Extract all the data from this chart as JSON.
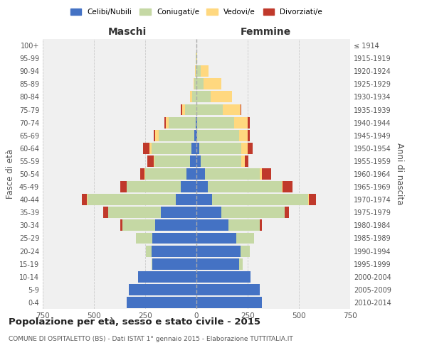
{
  "age_groups": [
    "0-4",
    "5-9",
    "10-14",
    "15-19",
    "20-24",
    "25-29",
    "30-34",
    "35-39",
    "40-44",
    "45-49",
    "50-54",
    "55-59",
    "60-64",
    "65-69",
    "70-74",
    "75-79",
    "80-84",
    "85-89",
    "90-94",
    "95-99",
    "100+"
  ],
  "birth_years": [
    "2010-2014",
    "2005-2009",
    "2000-2004",
    "1995-1999",
    "1990-1994",
    "1985-1989",
    "1980-1984",
    "1975-1979",
    "1970-1974",
    "1965-1969",
    "1960-1964",
    "1955-1959",
    "1950-1954",
    "1945-1949",
    "1940-1944",
    "1935-1939",
    "1930-1934",
    "1925-1929",
    "1920-1924",
    "1915-1919",
    "≤ 1914"
  ],
  "males": {
    "celibe": [
      340,
      330,
      285,
      215,
      220,
      215,
      200,
      175,
      100,
      75,
      50,
      30,
      25,
      10,
      5,
      0,
      0,
      0,
      0,
      0,
      0
    ],
    "coniugato": [
      0,
      0,
      0,
      5,
      25,
      80,
      160,
      255,
      430,
      265,
      200,
      175,
      195,
      175,
      130,
      55,
      20,
      10,
      5,
      2,
      0
    ],
    "vedovo": [
      0,
      0,
      0,
      0,
      0,
      0,
      0,
      0,
      5,
      2,
      5,
      5,
      10,
      15,
      15,
      15,
      10,
      5,
      2,
      0,
      0
    ],
    "divorziato": [
      0,
      0,
      0,
      0,
      0,
      0,
      10,
      25,
      25,
      30,
      20,
      30,
      30,
      10,
      5,
      5,
      0,
      0,
      0,
      0,
      0
    ]
  },
  "females": {
    "nubile": [
      320,
      310,
      265,
      210,
      215,
      195,
      155,
      120,
      75,
      55,
      40,
      20,
      15,
      5,
      5,
      0,
      0,
      0,
      0,
      0,
      0
    ],
    "coniugata": [
      0,
      0,
      0,
      15,
      45,
      85,
      155,
      310,
      470,
      360,
      270,
      200,
      205,
      205,
      180,
      130,
      70,
      35,
      20,
      0,
      0
    ],
    "vedova": [
      0,
      0,
      0,
      0,
      0,
      0,
      0,
      0,
      5,
      5,
      10,
      15,
      30,
      40,
      65,
      85,
      105,
      85,
      40,
      5,
      0
    ],
    "divorziata": [
      0,
      0,
      0,
      0,
      0,
      0,
      10,
      20,
      35,
      50,
      45,
      20,
      25,
      10,
      10,
      5,
      0,
      0,
      0,
      0,
      0
    ]
  },
  "colors": {
    "celibe": "#4472c4",
    "coniugato": "#c5d8a4",
    "vedovo": "#ffd87f",
    "divorziato": "#c0392b"
  },
  "title": "Popolazione per età, sesso e stato civile - 2015",
  "subtitle": "COMUNE DI OSPITALETTO (BS) - Dati ISTAT 1° gennaio 2015 - Elaborazione TUTTITALIA.IT",
  "xlabel_left": "Maschi",
  "xlabel_right": "Femmine",
  "ylabel_left": "Fasce di età",
  "ylabel_right": "Anni di nascita",
  "xlim": 750,
  "bg_color": "#f0f0f0",
  "grid_color": "#cccccc"
}
